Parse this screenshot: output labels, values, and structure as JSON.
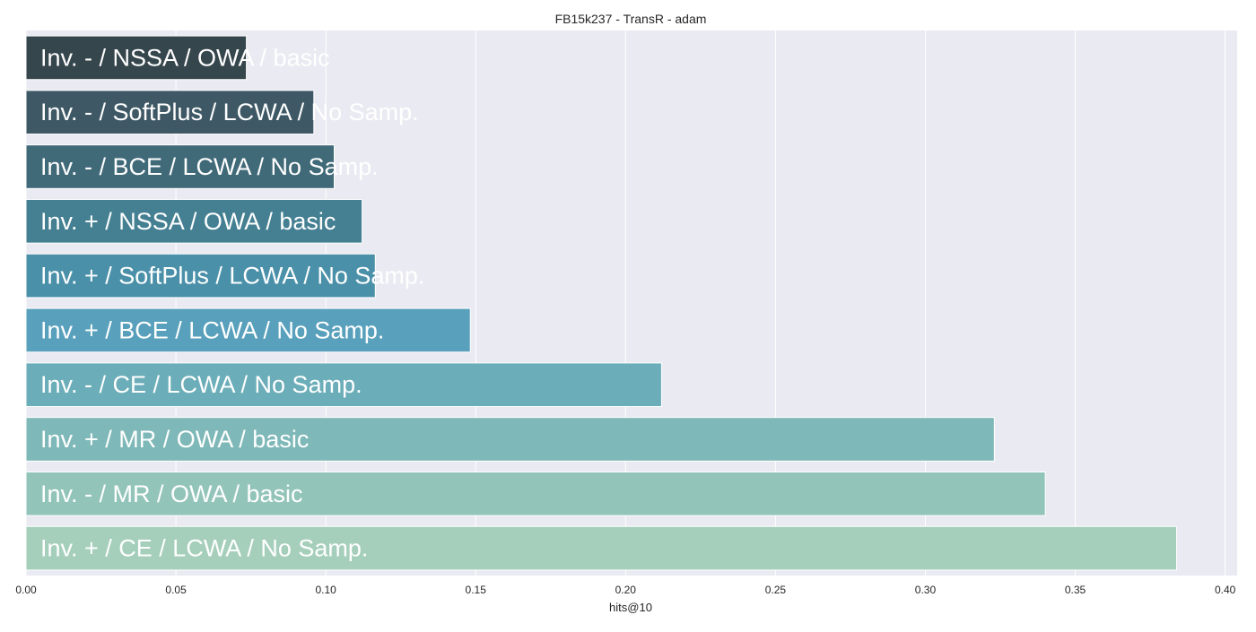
{
  "chart_data": {
    "type": "bar",
    "orientation": "horizontal",
    "title": "FB15k237 - TransR - adam",
    "xlabel": "hits@10",
    "ylabel": "",
    "xlim": [
      0,
      0.404
    ],
    "x_ticks": [
      0.0,
      0.05,
      0.1,
      0.15,
      0.2,
      0.25,
      0.3,
      0.35,
      0.4
    ],
    "x_tick_labels": [
      "0.00",
      "0.05",
      "0.10",
      "0.15",
      "0.20",
      "0.25",
      "0.30",
      "0.35",
      "0.40"
    ],
    "grid": true,
    "categories": [
      "Inv. - / NSSA / OWA / basic",
      "Inv. - / SoftPlus / LCWA / No Samp.",
      "Inv. - / BCE / LCWA / No Samp.",
      "Inv. + / NSSA / OWA / basic",
      "Inv. + / SoftPlus / LCWA / No Samp.",
      "Inv. + / BCE / LCWA / No Samp.",
      "Inv. - / CE / LCWA / No Samp.",
      "Inv. + / MR / OWA / basic",
      "Inv. - / MR / OWA / basic",
      "Inv. + / CE / LCWA / No Samp."
    ],
    "values": [
      0.0735,
      0.096,
      0.1028,
      0.1121,
      0.1165,
      0.1482,
      0.212,
      0.323,
      0.34,
      0.3838
    ],
    "colors": [
      "#36464d",
      "#3e5965",
      "#416a79",
      "#447f92",
      "#4a90a9",
      "#58a0bb",
      "#6badb8",
      "#7fb8b8",
      "#93c4b9",
      "#a5cfbb"
    ],
    "plot_background": "#eaeaf2",
    "grid_color": "#ffffff",
    "label_color": "#ffffff"
  }
}
